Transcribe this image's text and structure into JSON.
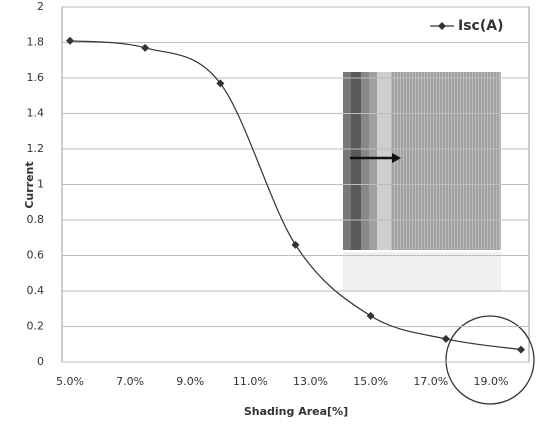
{
  "chart_data": {
    "type": "line",
    "x_label": "Shading Area[%]",
    "y_label": "Current",
    "x": [
      5,
      7.5,
      10,
      12.5,
      15,
      17.5,
      20
    ],
    "series": [
      {
        "name": "Isc(A)",
        "color": "#333333",
        "values": [
          1.81,
          1.77,
          1.57,
          0.66,
          0.26,
          0.13,
          0.07
        ]
      }
    ],
    "xlim": [
      5,
      20
    ],
    "xticks": [
      {
        "value": 5,
        "label": "5.0%"
      },
      {
        "value": 7,
        "label": "7.0%"
      },
      {
        "value": 9,
        "label": "9.0%"
      },
      {
        "value": 11,
        "label": "11.0%"
      },
      {
        "value": 13,
        "label": "13.0%"
      },
      {
        "value": 15,
        "label": "15.0%"
      },
      {
        "value": 17,
        "label": "17.0%"
      },
      {
        "value": 19,
        "label": "19.0%"
      }
    ],
    "ylim": [
      0,
      2
    ],
    "yticks": [
      0,
      0.2,
      0.4,
      0.6,
      0.8,
      1,
      1.2,
      1.4,
      1.6,
      1.8,
      2
    ],
    "grid": true,
    "legend": "top-right",
    "smooth": true
  }
}
